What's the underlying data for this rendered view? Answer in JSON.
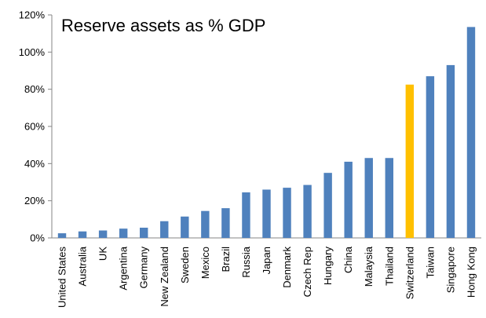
{
  "chart_data": {
    "type": "bar",
    "title": "Reserve assets as % GDP",
    "xlabel": "",
    "ylabel": "",
    "ylim": [
      0,
      120
    ],
    "y_unit": "%",
    "y_ticks": [
      0,
      20,
      40,
      60,
      80,
      100,
      120
    ],
    "y_tick_labels": [
      "0%",
      "20%",
      "40%",
      "60%",
      "80%",
      "100%",
      "120%"
    ],
    "grid": false,
    "legend": "none",
    "categories": [
      "United States",
      "Australia",
      "UK",
      "Argentina",
      "Germany",
      "New Zealand",
      "Sweden",
      "Mexico",
      "Brazil",
      "Russia",
      "Japan",
      "Denmark",
      "Czech Rep",
      "Hungary",
      "China",
      "Malaysia",
      "Thailand",
      "Switzerland",
      "Taiwan",
      "Singapore",
      "Hong Kong"
    ],
    "values": [
      2.5,
      3.5,
      4,
      5,
      5.5,
      9,
      11.5,
      14.5,
      16,
      24.5,
      26,
      27,
      28.5,
      35,
      41,
      43,
      43,
      82.5,
      87,
      93,
      113.5
    ],
    "bar_color": "#4f81bd",
    "highlight_category": "Switzerland",
    "highlight_color": "#ffc000"
  }
}
